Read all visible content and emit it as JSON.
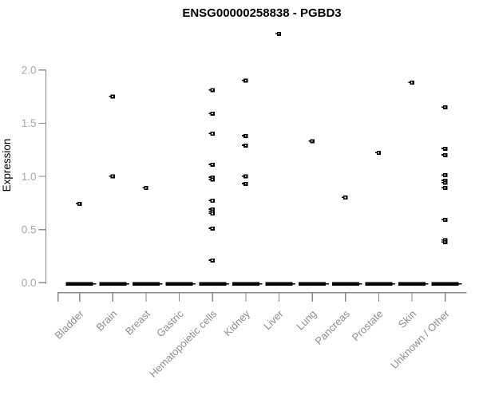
{
  "chart_data": {
    "type": "scatter",
    "title": "ENSG00000258838 - PGBD3",
    "ylabel": "Expression",
    "xlabel": "",
    "categories": [
      "Bladder",
      "Brain",
      "Breast",
      "Gastric",
      "Hematopoietic cells",
      "Kidney",
      "Liver",
      "Lung",
      "Pancreas",
      "Prostate",
      "Skin",
      "Unknown / Other"
    ],
    "series": [
      {
        "name": "Bladder",
        "values": [
          0.74
        ],
        "zero_cluster": true
      },
      {
        "name": "Brain",
        "values": [
          1.75,
          1.0
        ],
        "zero_cluster": true
      },
      {
        "name": "Breast",
        "values": [
          0.89
        ],
        "zero_cluster": true
      },
      {
        "name": "Gastric",
        "values": [],
        "zero_cluster": true
      },
      {
        "name": "Hematopoietic cells",
        "values": [
          1.81,
          1.59,
          1.4,
          1.11,
          0.99,
          0.97,
          0.77,
          0.69,
          0.67,
          0.65,
          0.51,
          0.21
        ],
        "zero_cluster": true
      },
      {
        "name": "Kidney",
        "values": [
          1.9,
          1.38,
          1.29,
          1.0,
          0.93
        ],
        "zero_cluster": true
      },
      {
        "name": "Liver",
        "values": [
          2.34
        ],
        "zero_cluster": true
      },
      {
        "name": "Lung",
        "values": [
          1.33
        ],
        "zero_cluster": true
      },
      {
        "name": "Pancreas",
        "values": [
          0.8
        ],
        "zero_cluster": true
      },
      {
        "name": "Prostate",
        "values": [
          1.22
        ],
        "zero_cluster": true
      },
      {
        "name": "Skin",
        "values": [
          1.88
        ],
        "zero_cluster": true
      },
      {
        "name": "Unknown / Other",
        "values": [
          1.65,
          1.26,
          1.2,
          1.01,
          0.96,
          0.94,
          0.89,
          0.59,
          0.4,
          0.38
        ],
        "zero_cluster": true
      }
    ],
    "yticks": [
      0.0,
      0.5,
      1.0,
      1.5,
      2.0
    ],
    "ytick_labels": [
      "0.0",
      "0.5",
      "1.0",
      "1.5",
      "2.0"
    ],
    "ylim": [
      0,
      2.4
    ],
    "grid": false,
    "legend": "none",
    "marker": "small-black-square",
    "zero_cluster_note": "thick black dash at expression 0 in every category"
  },
  "colors": {
    "marker": "#000000",
    "axis": "#898989",
    "tick_label": "#9fa8b0",
    "axis_label": "#8d8d8d",
    "title": "#000000",
    "background": "#ffffff"
  }
}
